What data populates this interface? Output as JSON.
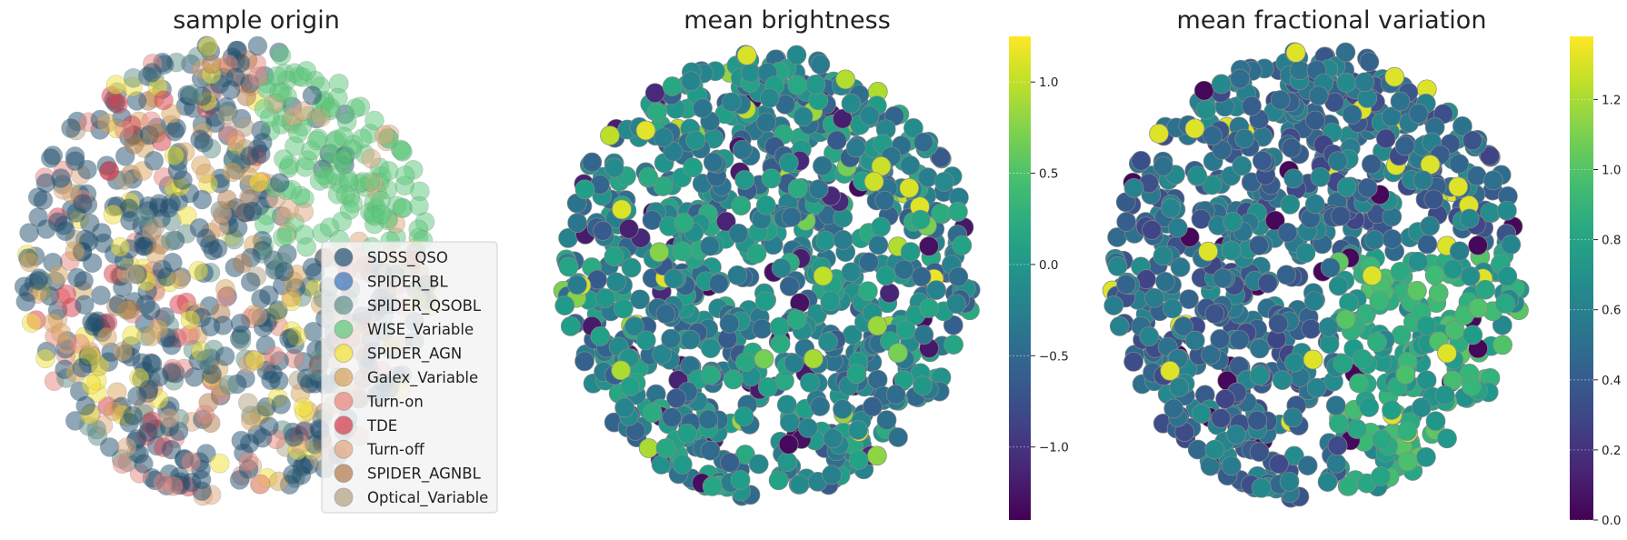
{
  "chart_data": [
    {
      "type": "scatter",
      "title": "sample origin",
      "xlabel": "",
      "ylabel": "",
      "axes_visible": false,
      "legend": {
        "placement": "lower-right",
        "entries": [
          {
            "name": "SDSS_QSO",
            "color": "#1f4e6e"
          },
          {
            "name": "SPIDER_BL",
            "color": "#3a6fb8"
          },
          {
            "name": "SPIDER_QSOBL",
            "color": "#5f8f88"
          },
          {
            "name": "WISE_Variable",
            "color": "#5cc77a"
          },
          {
            "name": "SPIDER_AGN",
            "color": "#f2e233"
          },
          {
            "name": "Galex_Variable",
            "color": "#d9a35a"
          },
          {
            "name": "Turn-on",
            "color": "#e8857e"
          },
          {
            "name": "TDE",
            "color": "#d93a4a"
          },
          {
            "name": "Turn-off",
            "color": "#e0a57e"
          },
          {
            "name": "SPIDER_AGNBL",
            "color": "#b07848"
          },
          {
            "name": "Optical_Variable",
            "color": "#b0a080"
          }
        ]
      }
    },
    {
      "type": "scatter",
      "title": "mean brightness",
      "axes_visible": false,
      "colorbar": {
        "colormap": "viridis",
        "range": [
          -1.4,
          1.25
        ],
        "ticks": [
          "1.0",
          "0.5",
          "0.0",
          "−0.5",
          "−1.0"
        ],
        "tick_values": [
          1.0,
          0.5,
          0.0,
          -0.5,
          -1.0
        ]
      }
    },
    {
      "type": "scatter",
      "title": "mean fractional variation",
      "axes_visible": false,
      "colorbar": {
        "colormap": "viridis",
        "range": [
          0.0,
          1.38
        ],
        "ticks": [
          "1.2",
          "1.0",
          "0.8",
          "0.6",
          "0.4",
          "0.2",
          "0.0"
        ],
        "tick_values": [
          1.2,
          1.0,
          0.8,
          0.6,
          0.4,
          0.2,
          0.0
        ]
      }
    }
  ]
}
